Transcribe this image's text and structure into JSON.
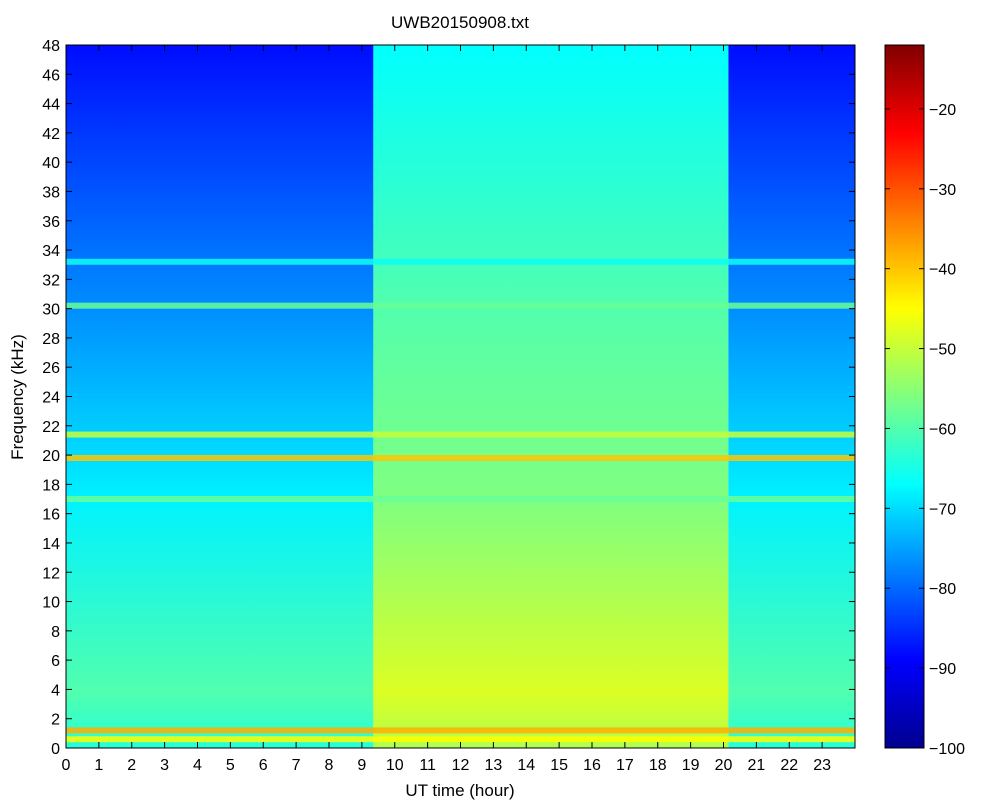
{
  "chart_data": {
    "type": "heatmap",
    "title": "UWB20150908.txt",
    "xlabel": "UT time (hour)",
    "ylabel": "Frequency (kHz)",
    "xlim": [
      0,
      24
    ],
    "ylim": [
      0,
      48
    ],
    "xticks": [
      0,
      1,
      2,
      3,
      4,
      5,
      6,
      7,
      8,
      9,
      10,
      11,
      12,
      13,
      14,
      15,
      16,
      17,
      18,
      19,
      20,
      21,
      22,
      23
    ],
    "yticks": [
      0,
      2,
      4,
      6,
      8,
      10,
      12,
      14,
      16,
      18,
      20,
      22,
      24,
      26,
      28,
      30,
      32,
      34,
      36,
      38,
      40,
      42,
      44,
      46,
      48
    ],
    "colorbar": {
      "ticks": [
        -100,
        -90,
        -80,
        -70,
        -60,
        -50,
        -40,
        -30,
        -20
      ],
      "range": [
        -100,
        -12
      ],
      "colormap": "jet"
    },
    "regions": [
      {
        "from_hour": 0,
        "to_hour": 9.35,
        "low_freq_level": -64,
        "high_freq_level": -88
      },
      {
        "from_hour": 9.35,
        "to_hour": 20.15,
        "low_freq_level": -52,
        "high_freq_level": -67
      },
      {
        "from_hour": 20.15,
        "to_hour": 24,
        "low_freq_level": -64,
        "high_freq_level": -88
      }
    ],
    "bands_khz": [
      {
        "freq": 19.8,
        "level": -40
      },
      {
        "freq": 30.2,
        "level": -58
      },
      {
        "freq": 33.2,
        "level": -66
      },
      {
        "freq": 21.4,
        "level": -50
      },
      {
        "freq": 17.0,
        "level": -58
      },
      {
        "freq": 1.2,
        "level": -38
      },
      {
        "freq": 0.6,
        "level": -45
      }
    ]
  }
}
